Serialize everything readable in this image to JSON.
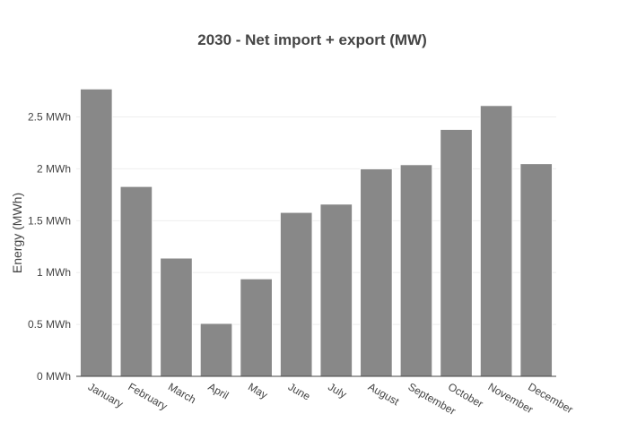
{
  "chart_data": {
    "type": "bar",
    "title": "2030 - Net import + export (MW)",
    "xlabel": "",
    "ylabel": "Energy (MWh)",
    "categories": [
      "January",
      "February",
      "March",
      "April",
      "May",
      "June",
      "July",
      "August",
      "September",
      "October",
      "November",
      "December"
    ],
    "values": [
      2.77,
      1.83,
      1.14,
      0.51,
      0.94,
      1.58,
      1.66,
      2.0,
      2.04,
      2.38,
      2.61,
      2.05
    ],
    "ylim": [
      0,
      2.85
    ],
    "yticks": [
      0,
      0.5,
      1,
      1.5,
      2,
      2.5
    ],
    "ytick_labels": [
      "0 MWh",
      "0.5 MWh",
      "1 MWh",
      "1.5 MWh",
      "2 MWh",
      "2.5 MWh"
    ],
    "grid": true,
    "bar_color": "#888888"
  }
}
